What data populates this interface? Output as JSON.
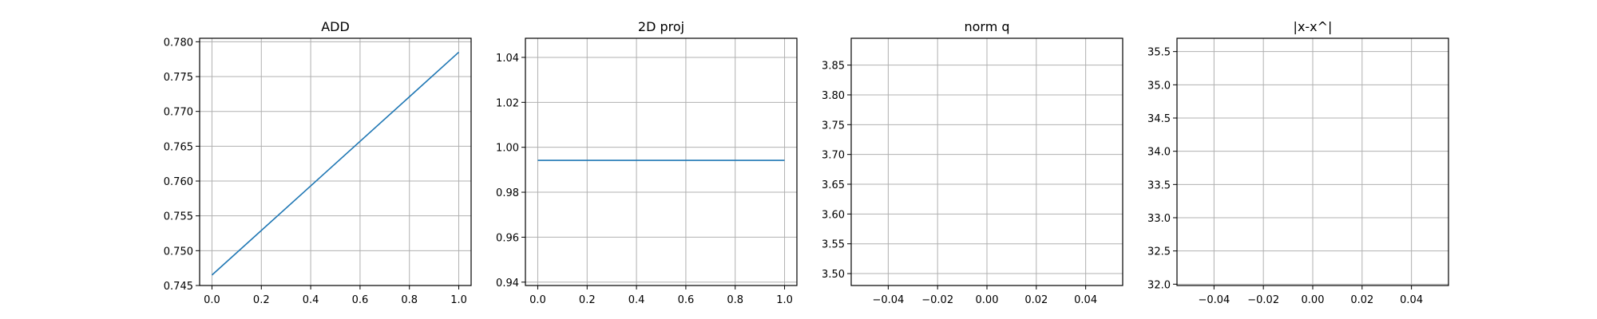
{
  "chart_data": [
    {
      "type": "line",
      "title": "ADD",
      "xlabel": "",
      "ylabel": "",
      "xlim": [
        -0.05,
        1.05
      ],
      "ylim": [
        0.745,
        0.7805
      ],
      "grid": true,
      "x_ticks": [
        "0.0",
        "0.2",
        "0.4",
        "0.6",
        "0.8",
        "1.0"
      ],
      "y_ticks": [
        "0.745",
        "0.750",
        "0.755",
        "0.760",
        "0.765",
        "0.770",
        "0.775",
        "0.780"
      ],
      "series": [
        {
          "color": "#1f77b4",
          "x": [
            0,
            1
          ],
          "y": [
            0.7465,
            0.7785
          ]
        }
      ]
    },
    {
      "type": "line",
      "title": "2D proj",
      "xlabel": "",
      "ylabel": "",
      "xlim": [
        -0.05,
        1.05
      ],
      "ylim": [
        0.9385,
        1.0485
      ],
      "grid": true,
      "x_ticks": [
        "0.0",
        "0.2",
        "0.4",
        "0.6",
        "0.8",
        "1.0"
      ],
      "y_ticks": [
        "0.94",
        "0.96",
        "0.98",
        "1.00",
        "1.02",
        "1.04"
      ],
      "series": [
        {
          "color": "#1f77b4",
          "x": [
            0,
            1
          ],
          "y": [
            0.9942,
            0.9942
          ]
        }
      ]
    },
    {
      "type": "line",
      "title": "norm q",
      "xlabel": "",
      "ylabel": "",
      "xlim": [
        -0.055,
        0.055
      ],
      "ylim": [
        3.48,
        3.895
      ],
      "grid": true,
      "x_ticks": [
        "−0.04",
        "−0.02",
        "0.00",
        "0.02",
        "0.04"
      ],
      "y_ticks": [
        "3.50",
        "3.55",
        "3.60",
        "3.65",
        "3.70",
        "3.75",
        "3.80",
        "3.85"
      ],
      "series": []
    },
    {
      "type": "line",
      "title": "|x-x^|",
      "xlabel": "",
      "ylabel": "",
      "xlim": [
        -0.055,
        0.055
      ],
      "ylim": [
        31.98,
        35.7
      ],
      "grid": true,
      "x_ticks": [
        "−0.04",
        "−0.02",
        "0.00",
        "0.02",
        "0.04"
      ],
      "y_ticks": [
        "32.0",
        "32.5",
        "33.0",
        "33.5",
        "34.0",
        "34.5",
        "35.0",
        "35.5"
      ],
      "series": []
    }
  ]
}
